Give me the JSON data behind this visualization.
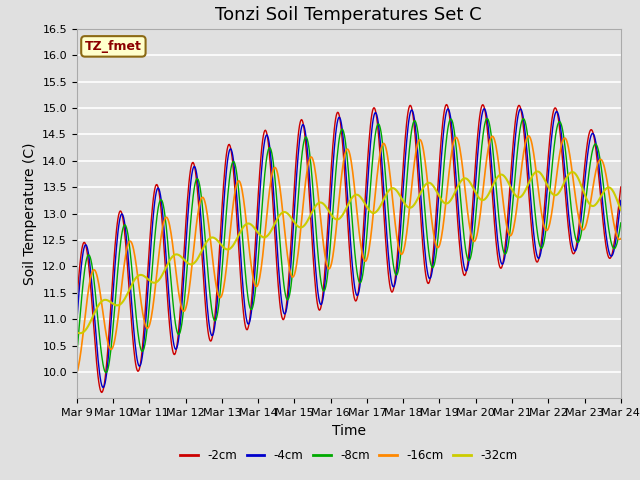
{
  "title": "Tonzi Soil Temperatures Set C",
  "xlabel": "Time",
  "ylabel": "Soil Temperature (C)",
  "legend_label": "TZ_fmet",
  "ylim": [
    9.5,
    16.5
  ],
  "yticks": [
    10.0,
    10.5,
    11.0,
    11.5,
    12.0,
    12.5,
    13.0,
    13.5,
    14.0,
    14.5,
    15.0,
    15.5,
    16.0,
    16.5
  ],
  "xtick_labels": [
    "Mar 9",
    "Mar 10",
    "Mar 11",
    "Mar 12",
    "Mar 13",
    "Mar 14",
    "Mar 15",
    "Mar 16",
    "Mar 17",
    "Mar 18",
    "Mar 19",
    "Mar 20",
    "Mar 21",
    "Mar 22",
    "Mar 23",
    "Mar 24"
  ],
  "series_colors": [
    "#cc0000",
    "#0000cc",
    "#00aa00",
    "#ff8800",
    "#cccc00"
  ],
  "series_names": [
    "-2cm",
    "-4cm",
    "-8cm",
    "-16cm",
    "-32cm"
  ],
  "plot_bg_color": "#e0e0e0",
  "grid_color": "#ffffff",
  "title_fontsize": 13,
  "axis_fontsize": 10,
  "tick_fontsize": 8
}
